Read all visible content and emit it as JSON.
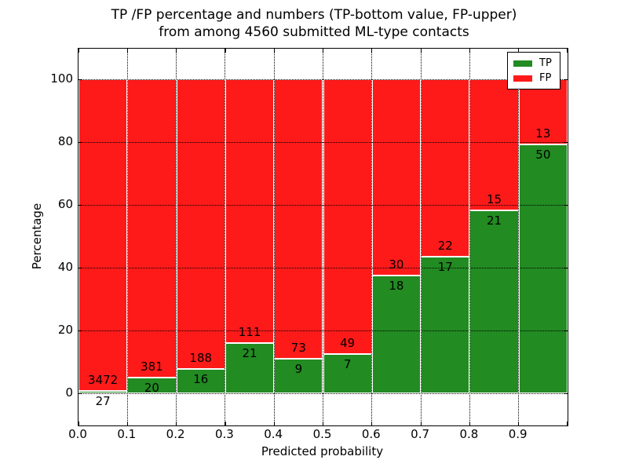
{
  "chart_data": {
    "type": "bar",
    "stacked_percentage": true,
    "grid": true,
    "title": "TP /FP percentage and numbers (TP-bottom value, FP-upper)\nfrom among 4560 submitted ML-type contacts",
    "title_lines": [
      "TP /FP percentage and numbers (TP-bottom value, FP-upper)",
      "from among 4560 submitted ML-type contacts"
    ],
    "xlabel": "Predicted probability",
    "ylabel": "Percentage",
    "total_contacts": 4560,
    "bin_width": 0.1,
    "xlim": [
      0.0,
      1.0
    ],
    "ylim": [
      -10.25,
      109.75
    ],
    "x_tick_labels": [
      "0.0",
      "0.1",
      "0.2",
      "0.3",
      "0.4",
      "0.5",
      "0.6",
      "0.7",
      "0.8",
      "0.9"
    ],
    "y_ticks": [
      0,
      20,
      40,
      60,
      80,
      100
    ],
    "categories": [
      "0.0-0.1",
      "0.1-0.2",
      "0.2-0.3",
      "0.3-0.4",
      "0.4-0.5",
      "0.5-0.6",
      "0.6-0.7",
      "0.7-0.8",
      "0.8-0.9",
      "0.9-1.0"
    ],
    "series": [
      {
        "name": "TP",
        "color": "#228B22",
        "counts": [
          27,
          20,
          16,
          21,
          9,
          7,
          18,
          17,
          21,
          50
        ]
      },
      {
        "name": "FP",
        "color": "#FF1A1A",
        "counts": [
          3472,
          381,
          188,
          111,
          73,
          49,
          30,
          22,
          15,
          13
        ]
      }
    ],
    "legend": {
      "position": "upper right",
      "entries": [
        "TP",
        "FP"
      ]
    }
  }
}
